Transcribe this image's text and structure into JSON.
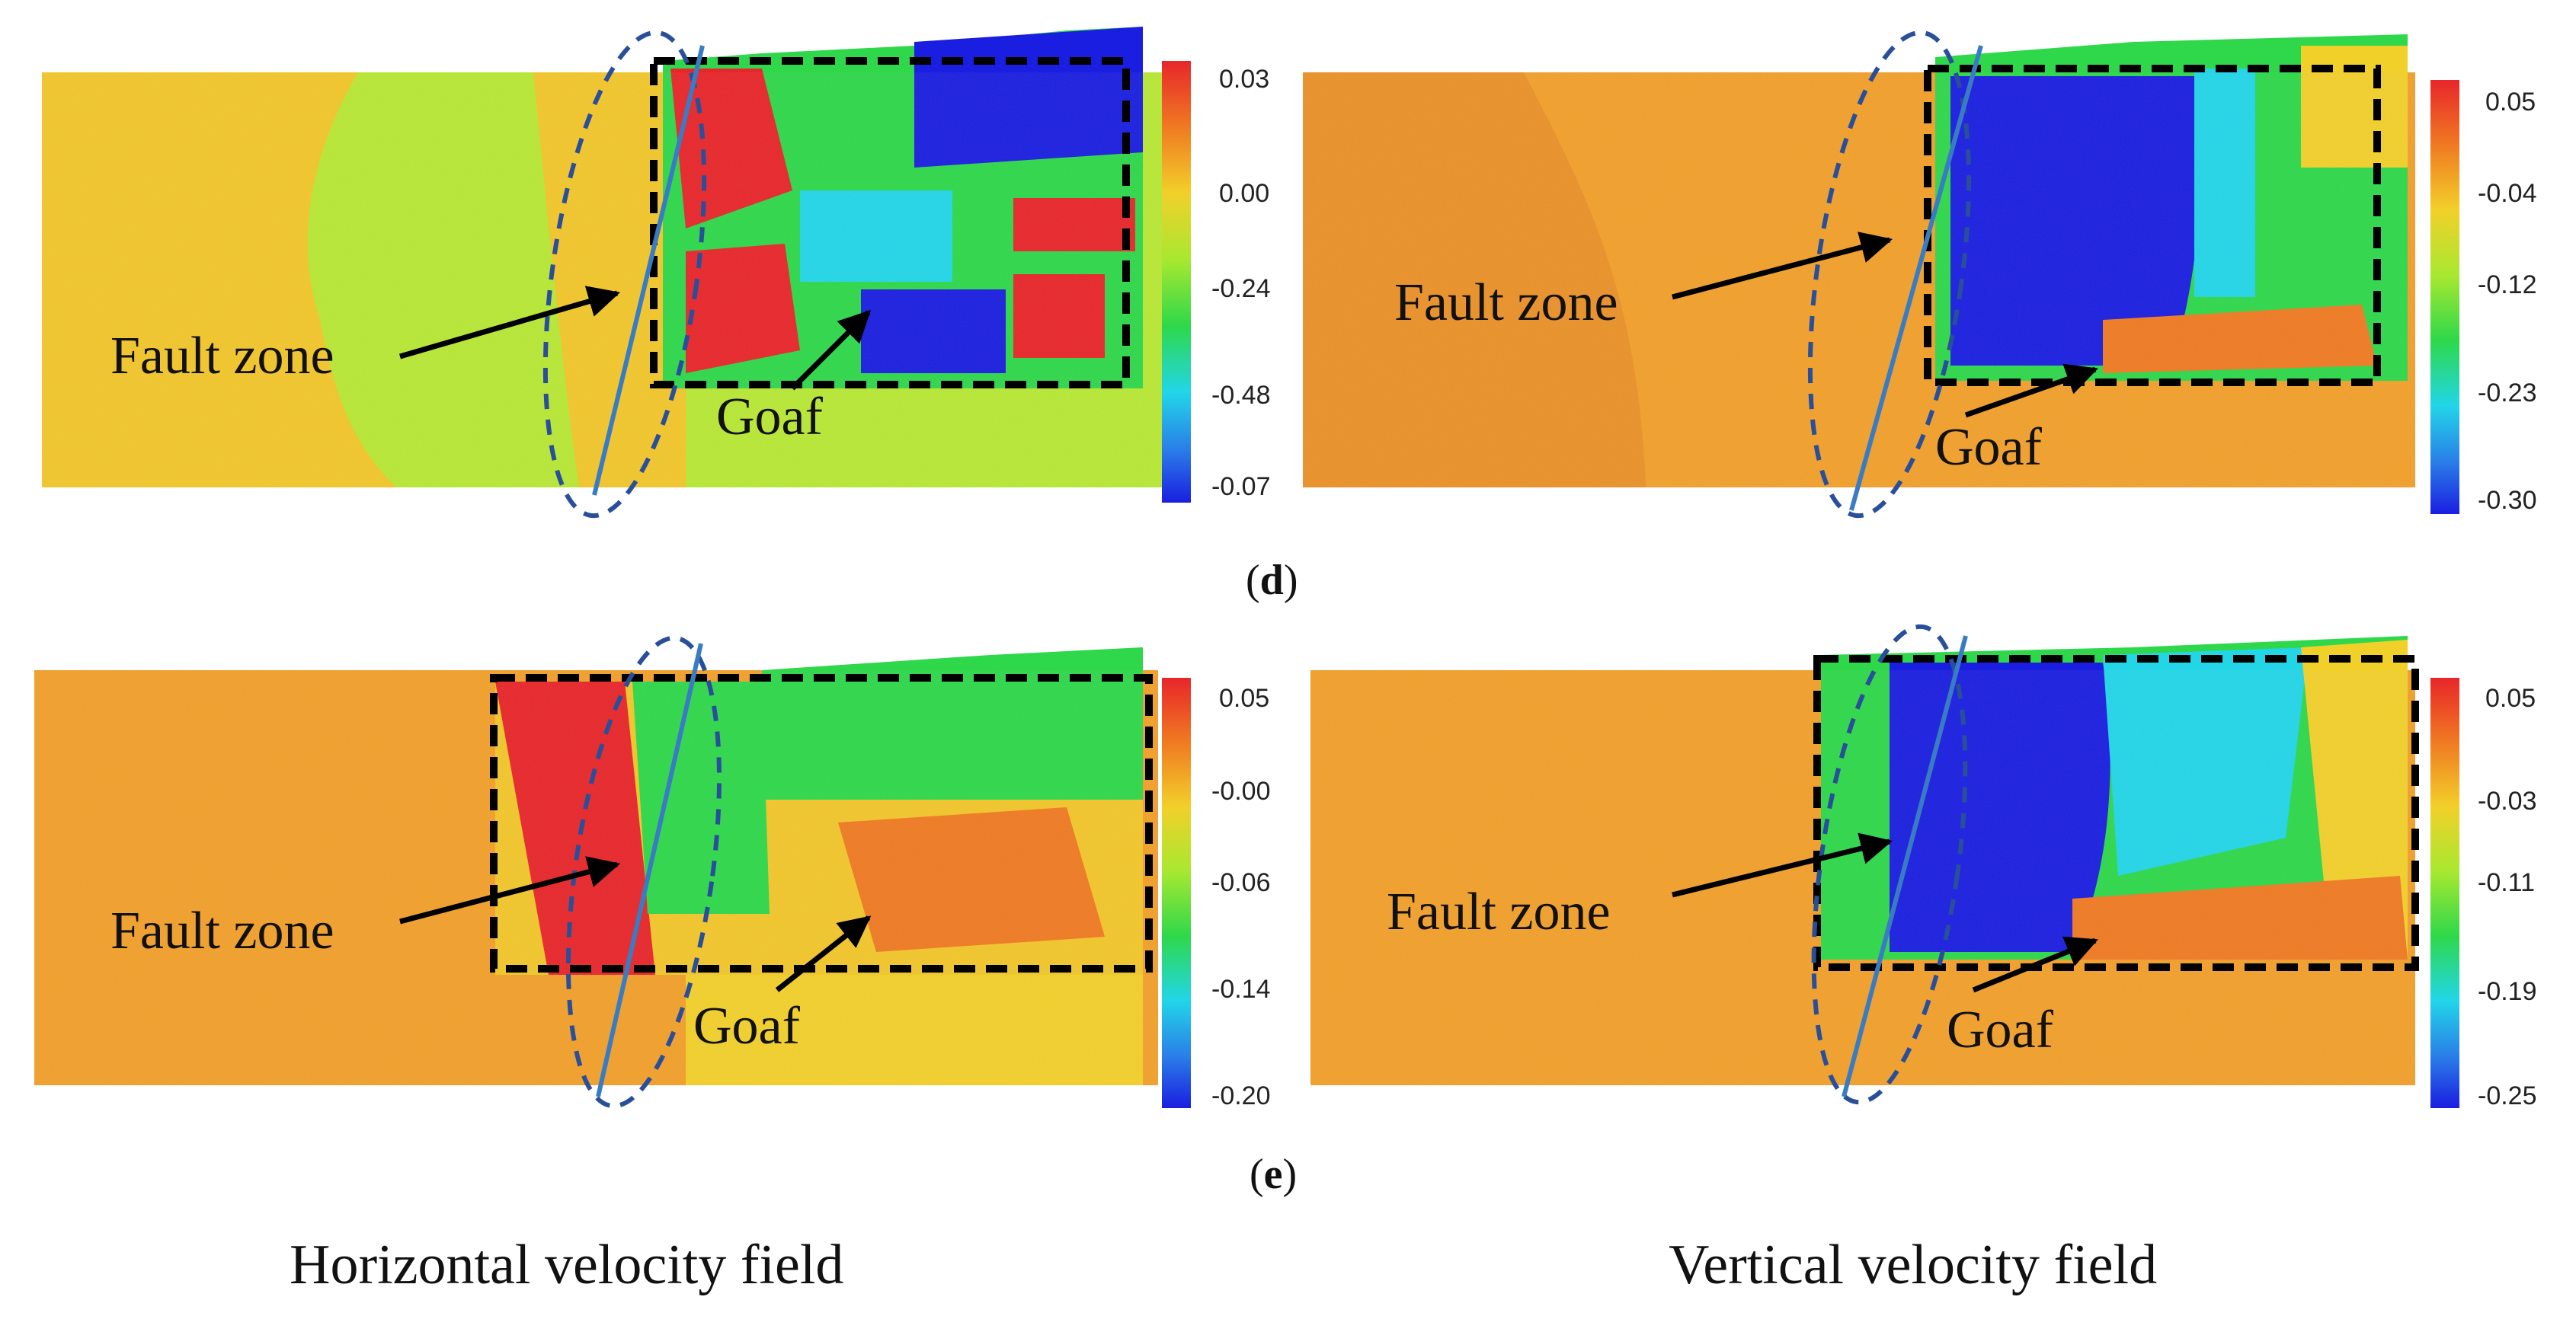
{
  "rows": [
    {
      "letter": "d",
      "panels": [
        {
          "id": "d-horizontal",
          "fault_label": "Fault zone",
          "goaf_label": "Goaf",
          "colorbar": [
            "0.03",
            "0.00",
            "-0.24",
            "-0.48",
            "-0.07"
          ]
        },
        {
          "id": "d-vertical",
          "fault_label": "Fault zone",
          "goaf_label": "Goaf",
          "colorbar": [
            "0.05",
            "-0.04",
            "-0.12",
            "-0.23",
            "-0.30"
          ]
        }
      ]
    },
    {
      "letter": "e",
      "panels": [
        {
          "id": "e-horizontal",
          "fault_label": "Fault zone",
          "goaf_label": "Goaf",
          "colorbar": [
            "0.05",
            "-0.00",
            "-0.06",
            "-0.14",
            "-0.20"
          ]
        },
        {
          "id": "e-vertical",
          "fault_label": "Fault zone",
          "goaf_label": "Goaf",
          "colorbar": [
            "0.05",
            "-0.03",
            "-0.11",
            "-0.19",
            "-0.25"
          ]
        }
      ]
    }
  ],
  "captions": {
    "left": "Horizontal velocity field",
    "right": "Vertical velocity field"
  },
  "colors": {
    "orange": "#f2a02a",
    "yellow_green": "#b8e834",
    "green": "#2ed84a",
    "blue": "#1a1ee0",
    "red": "#e8262a",
    "cyan": "#22d6e8",
    "fault_line": "#3a7cc4",
    "ellipse": "#2a4f9a"
  }
}
